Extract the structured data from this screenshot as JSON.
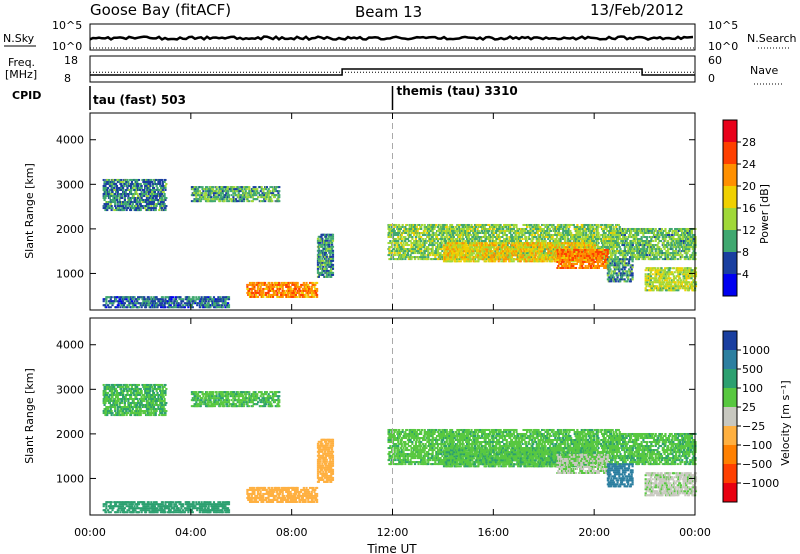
{
  "header": {
    "station": "Goose Bay (fitACF)",
    "beam": "Beam 13",
    "date": "13/Feb/2012"
  },
  "noise_panel": {
    "left_label": "N.Sky",
    "right_label": "N.Search",
    "left_ticks": [
      "10^5",
      "10^0"
    ],
    "right_ticks": [
      "10^5",
      "10^0"
    ]
  },
  "freq_panel": {
    "left_label_1": "Freq.",
    "left_label_2": "[MHz]",
    "right_label": "Nave",
    "left_ticks": [
      "18",
      "8"
    ],
    "right_ticks": [
      "60",
      "0"
    ],
    "freq_mhz": 12,
    "nave_steps": [
      {
        "from_h": 0.0,
        "to_h": 10.0,
        "value": 15
      },
      {
        "from_h": 10.0,
        "to_h": 21.9,
        "value": 30
      },
      {
        "from_h": 21.9,
        "to_h": 24.0,
        "value": 15
      }
    ]
  },
  "cpid": {
    "label": "CPID",
    "seg1": "tau (fast) 503",
    "seg2": "themis (tau) 3310",
    "switch_h": 12.0
  },
  "power_panel": {
    "ylabel": "Slant Range [km]",
    "cbar_label": "Power [dB]",
    "cbar_ticks": [
      "28",
      "24",
      "20",
      "16",
      "12",
      "8",
      "4"
    ],
    "cbar_colors": [
      "#e8001a",
      "#ff4000",
      "#ff9000",
      "#f0d000",
      "#a0d838",
      "#40a870",
      "#1a3fa0",
      "#0000f0"
    ]
  },
  "velocity_panel": {
    "ylabel": "Slant Range [km]",
    "cbar_label": "Velocity [m s⁻¹]",
    "cbar_ticks": [
      "1000",
      "500",
      "100",
      "25",
      "−25",
      "−100",
      "−500",
      "−1000"
    ],
    "cbar_colors": [
      "#1a3fa0",
      "#2c7fa0",
      "#2ca070",
      "#58c840",
      "#c8c8c0",
      "#ffb040",
      "#ff8000",
      "#ff4000",
      "#e80010"
    ]
  },
  "y_ticks": [
    "4000",
    "3000",
    "2000",
    "1000"
  ],
  "x_ticks": [
    "00:00",
    "04:00",
    "08:00",
    "12:00",
    "16:00",
    "20:00",
    "00:00"
  ],
  "xlabel": "Time UT",
  "chart_data": {
    "type": "heatmap",
    "x_range_hours": [
      0,
      24
    ],
    "y_range_km": [
      180,
      4600
    ],
    "power_range_db": [
      0,
      30
    ],
    "velocity_range_ms": [
      -1000,
      1000
    ],
    "echo_regions": [
      {
        "t": [
          0.5,
          3.0
        ],
        "r": [
          2400,
          3100
        ],
        "power": 8,
        "velocity": 20
      },
      {
        "t": [
          4.0,
          7.5
        ],
        "r": [
          2600,
          2950
        ],
        "power": 10,
        "velocity": 15
      },
      {
        "t": [
          6.2,
          9.0
        ],
        "r": [
          450,
          800
        ],
        "power": 21,
        "velocity": -250
      },
      {
        "t": [
          0.5,
          5.5
        ],
        "r": [
          220,
          450
        ],
        "power": 7,
        "velocity": 60
      },
      {
        "t": [
          9.0,
          9.6
        ],
        "r": [
          900,
          1850
        ],
        "power": 9,
        "velocity": -200
      },
      {
        "t": [
          11.8,
          21.0
        ],
        "r": [
          1300,
          2100
        ],
        "power": 12,
        "velocity": 5
      },
      {
        "t": [
          14.0,
          20.0
        ],
        "r": [
          1250,
          1700
        ],
        "power": 17,
        "velocity": 10
      },
      {
        "t": [
          18.5,
          20.5
        ],
        "r": [
          1100,
          1550
        ],
        "power": 22,
        "velocity": -30
      },
      {
        "t": [
          21.0,
          24.0
        ],
        "r": [
          1300,
          2000
        ],
        "power": 11,
        "velocity": 10
      },
      {
        "t": [
          20.5,
          21.5
        ],
        "r": [
          800,
          1300
        ],
        "power": 9,
        "velocity": 200
      },
      {
        "t": [
          22.0,
          24.0
        ],
        "r": [
          600,
          1100
        ],
        "power": 14,
        "velocity": -40
      }
    ]
  }
}
